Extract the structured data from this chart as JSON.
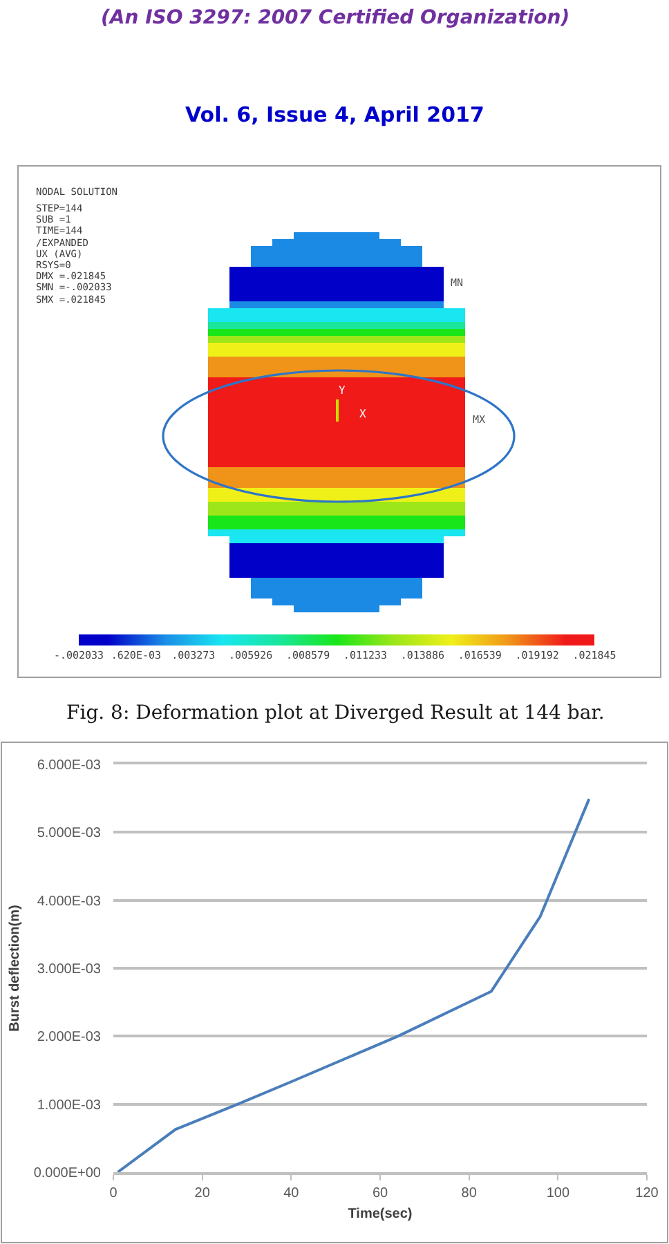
{
  "chart_data": [
    {
      "type": "heatmap",
      "annotations": [
        "(An ISO 3297: 2007 Certified Organization)",
        "Vol. 6, Issue 4, April 2017",
        "NODAL SOLUTION",
        "STEP=144",
        "SUB =1",
        "TIME=144",
        "/EXPANDED",
        "UX (AVG)",
        "RSYS=0",
        "DMX =.021845",
        "SMN =-.002033",
        "SMX =.021845",
        "MN",
        "MX",
        "Y",
        "X",
        "Fig. 8: Deformation plot at Diverged Result at 144 bar."
      ],
      "categories": [
        null,
        null,
        null,
        null,
        null,
        null,
        null,
        null,
        null,
        null,
        null,
        null
      ],
      "y_categories": [
        null,
        null,
        null,
        null,
        null,
        null,
        null,
        null,
        null,
        null,
        null,
        null,
        null,
        null,
        null,
        null,
        null,
        null,
        null,
        null,
        null,
        null,
        null,
        null,
        null,
        null,
        null,
        null,
        null,
        null,
        null,
        null,
        null,
        null,
        null,
        null,
        null,
        null,
        null,
        null,
        null,
        null,
        null,
        null,
        null,
        null,
        null,
        null,
        null,
        null,
        null,
        null,
        null,
        null,
        null
      ],
      "cells": [
        [
          null,
          null,
          null,
          null,
          0.0019,
          0.0019,
          0.0019,
          0.0019,
          null,
          null,
          null,
          null
        ],
        [
          null,
          null,
          null,
          0.0019,
          0.0019,
          0.0019,
          0.0019,
          0.0019,
          0.0019,
          null,
          null,
          null
        ],
        [
          null,
          null,
          0.0019,
          0.0019,
          0.0019,
          0.0019,
          0.0019,
          0.0019,
          0.0019,
          0.0019,
          null,
          null
        ],
        [
          null,
          null,
          0.0019,
          0.0019,
          0.0019,
          0.0019,
          0.0019,
          0.0019,
          0.0019,
          0.0019,
          null,
          null
        ],
        [
          null,
          null,
          0.0019,
          0.0019,
          0.0019,
          0.0019,
          0.0019,
          0.0019,
          0.0019,
          0.0019,
          null,
          null
        ],
        [
          null,
          -0.0007,
          -0.0007,
          -0.0007,
          -0.0007,
          -0.0007,
          -0.0007,
          -0.0007,
          -0.0007,
          -0.0007,
          -0.0007,
          null
        ],
        [
          null,
          -0.0007,
          -0.0007,
          -0.0007,
          -0.0007,
          -0.0007,
          -0.0007,
          -0.0007,
          -0.0007,
          -0.0007,
          -0.0007,
          null
        ],
        [
          null,
          -0.0007,
          -0.0007,
          -0.0007,
          -0.0007,
          -0.0007,
          -0.0007,
          -0.0007,
          -0.0007,
          -0.0007,
          -0.0007,
          null
        ],
        [
          null,
          -0.0007,
          -0.0007,
          -0.0007,
          -0.0007,
          -0.0007,
          -0.0007,
          -0.0007,
          -0.0007,
          -0.0007,
          -0.0007,
          null
        ],
        [
          null,
          -0.0007,
          -0.0007,
          -0.0007,
          -0.0007,
          -0.0007,
          -0.0007,
          -0.0007,
          -0.0007,
          -0.0007,
          -0.0007,
          null
        ],
        [
          null,
          0.0019,
          0.0019,
          0.0019,
          0.0019,
          0.0019,
          0.0019,
          0.0019,
          0.0019,
          0.0019,
          0.0019,
          null
        ],
        [
          0.0046,
          0.0046,
          0.0046,
          0.0046,
          0.0046,
          0.0046,
          0.0046,
          0.0046,
          0.0046,
          0.0046,
          0.0046,
          0.0046
        ],
        [
          0.0046,
          0.0046,
          0.0046,
          0.0046,
          0.0046,
          0.0046,
          0.0046,
          0.0046,
          0.0046,
          0.0046,
          0.0046,
          0.0046
        ],
        [
          0.0073,
          0.0073,
          0.0073,
          0.0073,
          0.0073,
          0.0073,
          0.0073,
          0.0073,
          0.0073,
          0.0073,
          0.0073,
          0.0073
        ],
        [
          0.0099,
          0.0099,
          0.0099,
          0.0099,
          0.0099,
          0.0099,
          0.0099,
          0.0099,
          0.0099,
          0.0099,
          0.0099,
          0.0099
        ],
        [
          0.0126,
          0.0126,
          0.0126,
          0.0126,
          0.0126,
          0.0126,
          0.0126,
          0.0126,
          0.0126,
          0.0126,
          0.0126,
          0.0126
        ],
        [
          0.0152,
          0.0152,
          0.0152,
          0.0152,
          0.0152,
          0.0152,
          0.0152,
          0.0152,
          0.0152,
          0.0152,
          0.0152,
          0.0152
        ],
        [
          0.0152,
          0.0152,
          0.0152,
          0.0152,
          0.0152,
          0.0152,
          0.0152,
          0.0152,
          0.0152,
          0.0152,
          0.0152,
          0.0152
        ],
        [
          0.0179,
          0.0179,
          0.0179,
          0.0179,
          0.0179,
          0.0179,
          0.0179,
          0.0179,
          0.0179,
          0.0179,
          0.0179,
          0.0179
        ],
        [
          0.0179,
          0.0179,
          0.0179,
          0.0179,
          0.0179,
          0.0179,
          0.0179,
          0.0179,
          0.0179,
          0.0179,
          0.0179,
          0.0179
        ],
        [
          0.0179,
          0.0179,
          0.0179,
          0.0179,
          0.0179,
          0.0179,
          0.0179,
          0.0179,
          0.0179,
          0.0179,
          0.0179,
          0.0179
        ],
        [
          0.0205,
          0.0205,
          0.0205,
          0.0205,
          0.0205,
          0.0205,
          0.0205,
          0.0205,
          0.0205,
          0.0205,
          0.0205,
          0.0205
        ],
        [
          0.0205,
          0.0205,
          0.0205,
          0.0205,
          0.0205,
          0.0205,
          0.0205,
          0.0205,
          0.0205,
          0.0205,
          0.0205,
          0.0205
        ],
        [
          0.0205,
          0.0205,
          0.0205,
          0.0205,
          0.0205,
          0.0205,
          0.0205,
          0.0205,
          0.0205,
          0.0205,
          0.0205,
          0.0205
        ],
        [
          0.0205,
          0.0205,
          0.0205,
          0.0205,
          0.0205,
          0.0205,
          0.0205,
          0.0205,
          0.0205,
          0.0205,
          0.0205,
          0.0205
        ],
        [
          0.0205,
          0.0205,
          0.0205,
          0.0205,
          0.0205,
          0.0205,
          0.0205,
          0.0205,
          0.0205,
          0.0205,
          0.0205,
          0.0205
        ],
        [
          0.0205,
          0.0205,
          0.0205,
          0.0205,
          0.0205,
          0.0205,
          0.0205,
          0.0205,
          0.0205,
          0.0205,
          0.0205,
          0.0205
        ],
        [
          0.0205,
          0.0205,
          0.0205,
          0.0205,
          0.0205,
          0.0205,
          0.0205,
          0.0205,
          0.0205,
          0.0205,
          0.0205,
          0.0205
        ],
        [
          0.0205,
          0.0205,
          0.0205,
          0.0205,
          0.0205,
          0.0205,
          0.0205,
          0.0205,
          0.0205,
          0.0205,
          0.0205,
          0.0205
        ],
        [
          0.0205,
          0.0205,
          0.0205,
          0.0205,
          0.0205,
          0.0205,
          0.0205,
          0.0205,
          0.0205,
          0.0205,
          0.0205,
          0.0205
        ],
        [
          0.0205,
          0.0205,
          0.0205,
          0.0205,
          0.0205,
          0.0205,
          0.0205,
          0.0205,
          0.0205,
          0.0205,
          0.0205,
          0.0205
        ],
        [
          0.0205,
          0.0205,
          0.0205,
          0.0205,
          0.0205,
          0.0205,
          0.0205,
          0.0205,
          0.0205,
          0.0205,
          0.0205,
          0.0205
        ],
        [
          0.0205,
          0.0205,
          0.0205,
          0.0205,
          0.0205,
          0.0205,
          0.0205,
          0.0205,
          0.0205,
          0.0205,
          0.0205,
          0.0205
        ],
        [
          0.0205,
          0.0205,
          0.0205,
          0.0205,
          0.0205,
          0.0205,
          0.0205,
          0.0205,
          0.0205,
          0.0205,
          0.0205,
          0.0205
        ],
        [
          0.0179,
          0.0179,
          0.0179,
          0.0179,
          0.0179,
          0.0179,
          0.0179,
          0.0179,
          0.0179,
          0.0179,
          0.0179,
          0.0179
        ],
        [
          0.0179,
          0.0179,
          0.0179,
          0.0179,
          0.0179,
          0.0179,
          0.0179,
          0.0179,
          0.0179,
          0.0179,
          0.0179,
          0.0179
        ],
        [
          0.0179,
          0.0179,
          0.0179,
          0.0179,
          0.0179,
          0.0179,
          0.0179,
          0.0179,
          0.0179,
          0.0179,
          0.0179,
          0.0179
        ],
        [
          0.0152,
          0.0152,
          0.0152,
          0.0152,
          0.0152,
          0.0152,
          0.0152,
          0.0152,
          0.0152,
          0.0152,
          0.0152,
          0.0152
        ],
        [
          0.0152,
          0.0152,
          0.0152,
          0.0152,
          0.0152,
          0.0152,
          0.0152,
          0.0152,
          0.0152,
          0.0152,
          0.0152,
          0.0152
        ],
        [
          0.0126,
          0.0126,
          0.0126,
          0.0126,
          0.0126,
          0.0126,
          0.0126,
          0.0126,
          0.0126,
          0.0126,
          0.0126,
          0.0126
        ],
        [
          0.0126,
          0.0126,
          0.0126,
          0.0126,
          0.0126,
          0.0126,
          0.0126,
          0.0126,
          0.0126,
          0.0126,
          0.0126,
          0.0126
        ],
        [
          0.0099,
          0.0099,
          0.0099,
          0.0099,
          0.0099,
          0.0099,
          0.0099,
          0.0099,
          0.0099,
          0.0099,
          0.0099,
          0.0099
        ],
        [
          0.0099,
          0.0099,
          0.0099,
          0.0099,
          0.0099,
          0.0099,
          0.0099,
          0.0099,
          0.0099,
          0.0099,
          0.0099,
          0.0099
        ],
        [
          0.0046,
          0.0046,
          0.0046,
          0.0046,
          0.0046,
          0.0046,
          0.0046,
          0.0046,
          0.0046,
          0.0046,
          0.0046,
          0.0046
        ],
        [
          null,
          0.0046,
          0.0046,
          0.0046,
          0.0046,
          0.0046,
          0.0046,
          0.0046,
          0.0046,
          0.0046,
          0.0046,
          null
        ],
        [
          null,
          -0.0007,
          -0.0007,
          -0.0007,
          -0.0007,
          -0.0007,
          -0.0007,
          -0.0007,
          -0.0007,
          -0.0007,
          -0.0007,
          null
        ],
        [
          null,
          -0.0007,
          -0.0007,
          -0.0007,
          -0.0007,
          -0.0007,
          -0.0007,
          -0.0007,
          -0.0007,
          -0.0007,
          -0.0007,
          null
        ],
        [
          null,
          -0.0007,
          -0.0007,
          -0.0007,
          -0.0007,
          -0.0007,
          -0.0007,
          -0.0007,
          -0.0007,
          -0.0007,
          -0.0007,
          null
        ],
        [
          null,
          -0.0007,
          -0.0007,
          -0.0007,
          -0.0007,
          -0.0007,
          -0.0007,
          -0.0007,
          -0.0007,
          -0.0007,
          -0.0007,
          null
        ],
        [
          null,
          -0.0007,
          -0.0007,
          -0.0007,
          -0.0007,
          -0.0007,
          -0.0007,
          -0.0007,
          -0.0007,
          -0.0007,
          -0.0007,
          null
        ],
        [
          null,
          null,
          0.0019,
          0.0019,
          0.0019,
          0.0019,
          0.0019,
          0.0019,
          0.0019,
          0.0019,
          null,
          null
        ],
        [
          null,
          null,
          0.0019,
          0.0019,
          0.0019,
          0.0019,
          0.0019,
          0.0019,
          0.0019,
          0.0019,
          null,
          null
        ],
        [
          null,
          null,
          0.0019,
          0.0019,
          0.0019,
          0.0019,
          0.0019,
          0.0019,
          0.0019,
          0.0019,
          null,
          null
        ],
        [
          null,
          null,
          null,
          0.0019,
          0.0019,
          0.0019,
          0.0019,
          0.0019,
          0.0019,
          null,
          null,
          null
        ],
        [
          null,
          null,
          null,
          null,
          0.0019,
          0.0019,
          0.0019,
          0.0019,
          null,
          null,
          null,
          null
        ]
      ],
      "clim": [
        -0.002033,
        0.021845
      ],
      "cticks": [
        {
          "value": -0.002033,
          "label": "-.002033"
        },
        {
          "value": 0.00062,
          "label": ".620E-03"
        },
        {
          "value": 0.003273,
          "label": ".003273"
        },
        {
          "value": 0.005926,
          "label": ".005926"
        },
        {
          "value": 0.008579,
          "label": ".008579"
        },
        {
          "value": 0.011233,
          "label": ".011233"
        },
        {
          "value": 0.013886,
          "label": ".013886"
        },
        {
          "value": 0.016539,
          "label": ".016539"
        },
        {
          "value": 0.019192,
          "label": ".019192"
        },
        {
          "value": 0.021845,
          "label": ".021845"
        }
      ]
    },
    {
      "type": "line",
      "xlabel": "Time(sec)",
      "ylabel": "Burst deflection(m)",
      "x": [
        1,
        14,
        28,
        40,
        64,
        85,
        96,
        107
      ],
      "values": [
        0,
        0.00063,
        0.001,
        0.00133,
        0.002,
        0.00266,
        0.00376,
        0.00549
      ],
      "color": "#4a7ebb",
      "xlim": [
        0,
        120
      ],
      "xticks": [
        0,
        20,
        40,
        60,
        80,
        100,
        120
      ],
      "ylim": [
        0,
        0.006
      ],
      "yticks": [
        {
          "value": 0,
          "label": "0.000E+00"
        },
        {
          "value": 0.001,
          "label": "1.000E-03"
        },
        {
          "value": 0.002,
          "label": "2.000E-03"
        },
        {
          "value": 0.003,
          "label": "3.000E-03"
        },
        {
          "value": 0.004,
          "label": "4.000E-03"
        },
        {
          "value": 0.005,
          "label": "5.000E-03"
        },
        {
          "value": 0.006,
          "label": "6.000E-03"
        }
      ],
      "grid": "y"
    }
  ]
}
